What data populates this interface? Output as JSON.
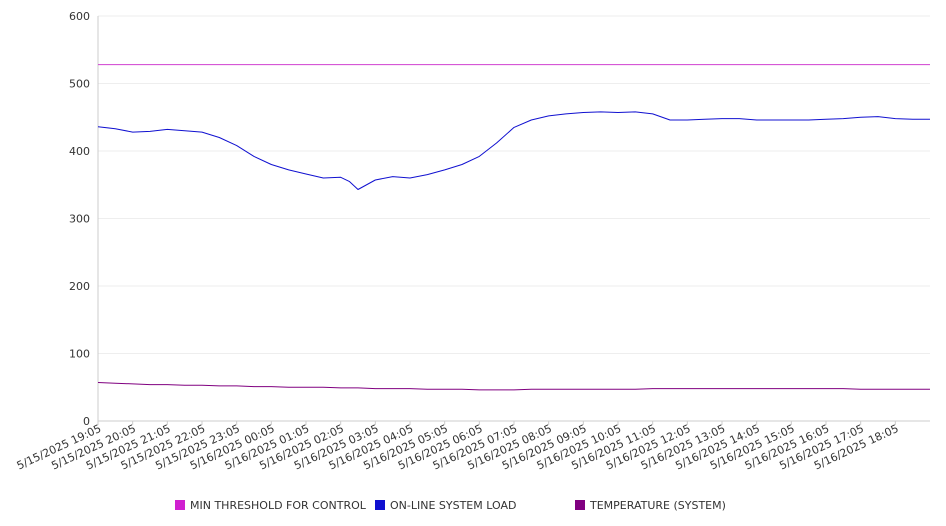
{
  "chart_data": {
    "type": "line",
    "title": "",
    "xlabel": "",
    "ylabel": "",
    "ylim": [
      0,
      600
    ],
    "yticks": [
      0,
      100,
      200,
      300,
      400,
      500,
      600
    ],
    "grid": "horizontal",
    "legend_position": "bottom",
    "x_tick_labels": [
      "5/15/2025 19:05",
      "5/15/2025 20:05",
      "5/15/2025 21:05",
      "5/15/2025 22:05",
      "5/15/2025 23:05",
      "5/16/2025 00:05",
      "5/16/2025 01:05",
      "5/16/2025 02:05",
      "5/16/2025 03:05",
      "5/16/2025 04:05",
      "5/16/2025 05:05",
      "5/16/2025 06:05",
      "5/16/2025 07:05",
      "5/16/2025 08:05",
      "5/16/2025 09:05",
      "5/16/2025 10:05",
      "5/16/2025 11:05",
      "5/16/2025 12:05",
      "5/16/2025 13:05",
      "5/16/2025 14:05",
      "5/16/2025 15:05",
      "5/16/2025 16:05",
      "5/16/2025 17:05",
      "5/16/2025 18:05"
    ],
    "x": [
      "5/15/2025 19:05",
      "5/15/2025 19:35",
      "5/15/2025 20:05",
      "5/15/2025 20:35",
      "5/15/2025 21:05",
      "5/15/2025 21:35",
      "5/15/2025 22:05",
      "5/15/2025 22:35",
      "5/15/2025 23:05",
      "5/15/2025 23:35",
      "5/16/2025 00:05",
      "5/16/2025 00:35",
      "5/16/2025 01:05",
      "5/16/2025 01:35",
      "5/16/2025 02:05",
      "5/16/2025 02:20",
      "5/16/2025 02:35",
      "5/16/2025 03:05",
      "5/16/2025 03:35",
      "5/16/2025 04:05",
      "5/16/2025 04:35",
      "5/16/2025 05:05",
      "5/16/2025 05:35",
      "5/16/2025 06:05",
      "5/16/2025 06:35",
      "5/16/2025 07:05",
      "5/16/2025 07:35",
      "5/16/2025 08:05",
      "5/16/2025 08:35",
      "5/16/2025 09:05",
      "5/16/2025 09:35",
      "5/16/2025 10:05",
      "5/16/2025 10:35",
      "5/16/2025 11:05",
      "5/16/2025 11:35",
      "5/16/2025 12:05",
      "5/16/2025 12:35",
      "5/16/2025 13:05",
      "5/16/2025 13:35",
      "5/16/2025 14:05",
      "5/16/2025 14:35",
      "5/16/2025 15:05",
      "5/16/2025 15:35",
      "5/16/2025 16:05",
      "5/16/2025 16:35",
      "5/16/2025 17:05",
      "5/16/2025 17:35",
      "5/16/2025 18:05",
      "5/16/2025 18:35",
      "5/16/2025 19:05"
    ],
    "series": [
      {
        "name": "MIN THRESHOLD FOR CONTROL",
        "color": "#d040d0",
        "values": [
          528,
          528,
          528,
          528,
          528,
          528,
          528,
          528,
          528,
          528,
          528,
          528,
          528,
          528,
          528,
          528,
          528,
          528,
          528,
          528,
          528,
          528,
          528,
          528,
          528,
          528,
          528,
          528,
          528,
          528,
          528,
          528,
          528,
          528,
          528,
          528,
          528,
          528,
          528,
          528,
          528,
          528,
          528,
          528,
          528,
          528,
          528,
          528,
          528,
          528
        ]
      },
      {
        "name": "ON-LINE SYSTEM LOAD",
        "color": "#1010d0",
        "values": [
          436,
          433,
          428,
          429,
          432,
          430,
          428,
          420,
          408,
          392,
          380,
          372,
          366,
          360,
          361,
          355,
          343,
          357,
          362,
          360,
          365,
          372,
          380,
          392,
          412,
          435,
          446,
          452,
          455,
          457,
          458,
          457,
          458,
          455,
          446,
          446,
          447,
          448,
          448,
          446,
          446,
          446,
          446,
          447,
          448,
          450,
          451,
          448,
          447,
          447
        ]
      },
      {
        "name": "TEMPERATURE (SYSTEM)",
        "color": "#800080",
        "values": [
          57,
          56,
          55,
          54,
          54,
          53,
          53,
          52,
          52,
          51,
          51,
          50,
          50,
          50,
          49,
          49,
          49,
          48,
          48,
          48,
          47,
          47,
          47,
          46,
          46,
          46,
          47,
          47,
          47,
          47,
          47,
          47,
          47,
          48,
          48,
          48,
          48,
          48,
          48,
          48,
          48,
          48,
          48,
          48,
          48,
          47,
          47,
          47,
          47,
          47
        ]
      }
    ]
  }
}
